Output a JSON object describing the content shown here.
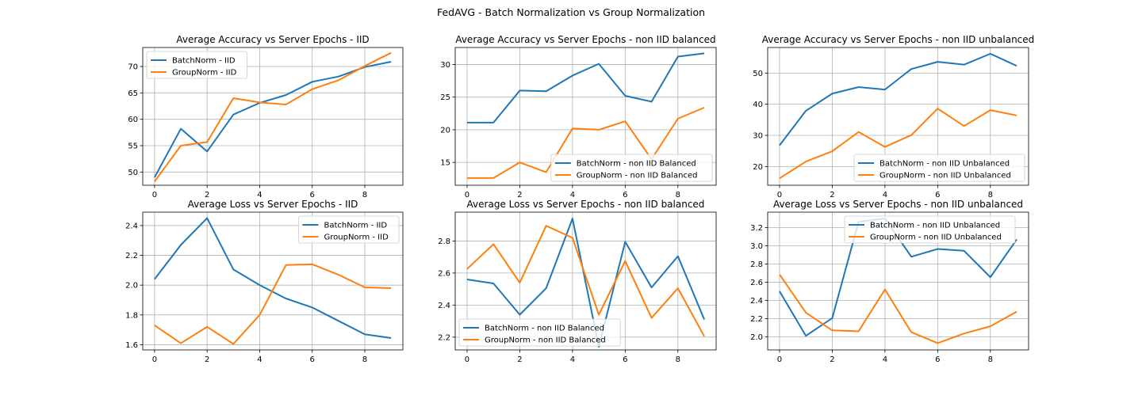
{
  "figure_title": "FedAVG - Batch Normalization vs Group Normalization",
  "colors": {
    "batch": "#1f77b4",
    "group": "#ff7f0e",
    "grid": "#b0b0b0"
  },
  "chart_data": [
    {
      "type": "line",
      "title": "Average Accuracy vs Server Epochs - IID",
      "x": [
        0,
        1,
        2,
        3,
        4,
        5,
        6,
        7,
        8,
        9
      ],
      "xticks": [
        0,
        2,
        4,
        6,
        8
      ],
      "xlim": [
        -0.45,
        9.45
      ],
      "ylim": [
        47.5,
        73.6
      ],
      "yticks": [
        50,
        55,
        60,
        65,
        70
      ],
      "grid": true,
      "legend": "upper-left",
      "series": [
        {
          "name": "BatchNorm - IID",
          "color": "#1f77b4",
          "values": [
            49.0,
            58.2,
            53.9,
            60.9,
            63.1,
            64.6,
            67.1,
            68.1,
            69.9,
            70.9
          ]
        },
        {
          "name": "GroupNorm - IID",
          "color": "#ff7f0e",
          "values": [
            48.2,
            55.0,
            55.7,
            64.0,
            63.2,
            62.8,
            65.7,
            67.4,
            70.1,
            72.6
          ]
        }
      ]
    },
    {
      "type": "line",
      "title": "Average Accuracy vs Server Epochs - non IID balanced",
      "x": [
        0,
        1,
        2,
        3,
        4,
        5,
        6,
        7,
        8,
        9
      ],
      "xticks": [
        0,
        2,
        4,
        6,
        8
      ],
      "xlim": [
        -0.45,
        9.45
      ],
      "ylim": [
        11.5,
        32.6
      ],
      "yticks": [
        15,
        20,
        25,
        30
      ],
      "grid": true,
      "legend": "lower-right",
      "series": [
        {
          "name": "BatchNorm - non IID Balanced",
          "color": "#1f77b4",
          "values": [
            21.1,
            21.1,
            26.0,
            25.9,
            28.3,
            30.1,
            25.2,
            24.3,
            31.2,
            31.7
          ]
        },
        {
          "name": "GroupNorm - non IID Balanced",
          "color": "#ff7f0e",
          "values": [
            12.6,
            12.6,
            15.0,
            13.5,
            20.2,
            20.0,
            21.3,
            15.5,
            21.7,
            23.4
          ]
        }
      ]
    },
    {
      "type": "line",
      "title": "Average Accuracy vs Server Epochs - non IID unbalanced",
      "x": [
        0,
        1,
        2,
        3,
        4,
        5,
        6,
        7,
        8,
        9
      ],
      "xticks": [
        0,
        2,
        4,
        6,
        8
      ],
      "xlim": [
        -0.45,
        9.45
      ],
      "ylim": [
        14.0,
        58.2
      ],
      "yticks": [
        20,
        30,
        40,
        50
      ],
      "grid": true,
      "legend": "lower-right",
      "series": [
        {
          "name": "BatchNorm - non IID Unbalanced",
          "color": "#1f77b4",
          "values": [
            26.8,
            37.9,
            43.4,
            45.5,
            44.7,
            51.3,
            53.6,
            52.7,
            56.2,
            52.3
          ]
        },
        {
          "name": "GroupNorm - non IID Unbalanced",
          "color": "#ff7f0e",
          "values": [
            16.2,
            21.6,
            24.9,
            31.1,
            26.3,
            30.1,
            38.6,
            33.0,
            38.1,
            36.4
          ]
        }
      ]
    },
    {
      "type": "line",
      "title": "Average Loss vs Server Epochs - IID",
      "x": [
        0,
        1,
        2,
        3,
        4,
        5,
        6,
        7,
        8,
        9
      ],
      "xticks": [
        0,
        2,
        4,
        6,
        8
      ],
      "xlim": [
        -0.45,
        9.45
      ],
      "ylim": [
        1.565,
        2.49
      ],
      "yticks": [
        1.6,
        1.8,
        2.0,
        2.2,
        2.4
      ],
      "ytick_labels": [
        "1.6",
        "1.8",
        "2.0",
        "2.2",
        "2.4"
      ],
      "grid": true,
      "legend": "upper-right",
      "series": [
        {
          "name": "BatchNorm - IID",
          "color": "#1f77b4",
          "values": [
            2.04,
            2.27,
            2.45,
            2.105,
            2.0,
            1.91,
            1.85,
            1.76,
            1.67,
            1.645
          ]
        },
        {
          "name": "GroupNorm - IID",
          "color": "#ff7f0e",
          "values": [
            1.73,
            1.61,
            1.72,
            1.605,
            1.8,
            2.135,
            2.14,
            2.07,
            1.985,
            1.98
          ]
        }
      ]
    },
    {
      "type": "line",
      "title": "Average Loss vs Server Epochs - non IID balanced",
      "x": [
        0,
        1,
        2,
        3,
        4,
        5,
        6,
        7,
        8,
        9
      ],
      "xticks": [
        0,
        2,
        4,
        6,
        8
      ],
      "xlim": [
        -0.45,
        9.45
      ],
      "ylim": [
        2.12,
        2.98
      ],
      "yticks": [
        2.2,
        2.4,
        2.6,
        2.8
      ],
      "ytick_labels": [
        "2.2",
        "2.4",
        "2.6",
        "2.8"
      ],
      "grid": true,
      "legend": "lower-left",
      "series": [
        {
          "name": "BatchNorm - non IID Balanced",
          "color": "#1f77b4",
          "values": [
            2.56,
            2.535,
            2.34,
            2.505,
            2.94,
            2.14,
            2.795,
            2.51,
            2.705,
            2.31
          ]
        },
        {
          "name": "GroupNorm - non IID Balanced",
          "color": "#ff7f0e",
          "values": [
            2.625,
            2.78,
            2.54,
            2.895,
            2.82,
            2.34,
            2.675,
            2.32,
            2.505,
            2.205
          ]
        }
      ]
    },
    {
      "type": "line",
      "title": "Average Loss vs Server Epochs - non IID unbalanced",
      "x": [
        0,
        1,
        2,
        3,
        4,
        5,
        6,
        7,
        8,
        9
      ],
      "xticks": [
        0,
        2,
        4,
        6,
        8
      ],
      "xlim": [
        -0.45,
        9.45
      ],
      "ylim": [
        1.855,
        3.37
      ],
      "yticks": [
        2.0,
        2.2,
        2.4,
        2.6,
        2.8,
        3.0,
        3.2
      ],
      "ytick_labels": [
        "2.0",
        "2.2",
        "2.4",
        "2.6",
        "2.8",
        "3.0",
        "3.2"
      ],
      "grid": true,
      "legend": "upper-center",
      "series": [
        {
          "name": "BatchNorm - non IID Unbalanced",
          "color": "#1f77b4",
          "values": [
            2.5,
            2.01,
            2.205,
            3.265,
            3.3,
            2.88,
            2.965,
            2.945,
            2.655,
            3.07
          ]
        },
        {
          "name": "GroupNorm - non IID Unbalanced",
          "color": "#ff7f0e",
          "values": [
            2.685,
            2.265,
            2.07,
            2.06,
            2.52,
            2.05,
            1.93,
            2.035,
            2.115,
            2.275
          ]
        }
      ]
    }
  ]
}
